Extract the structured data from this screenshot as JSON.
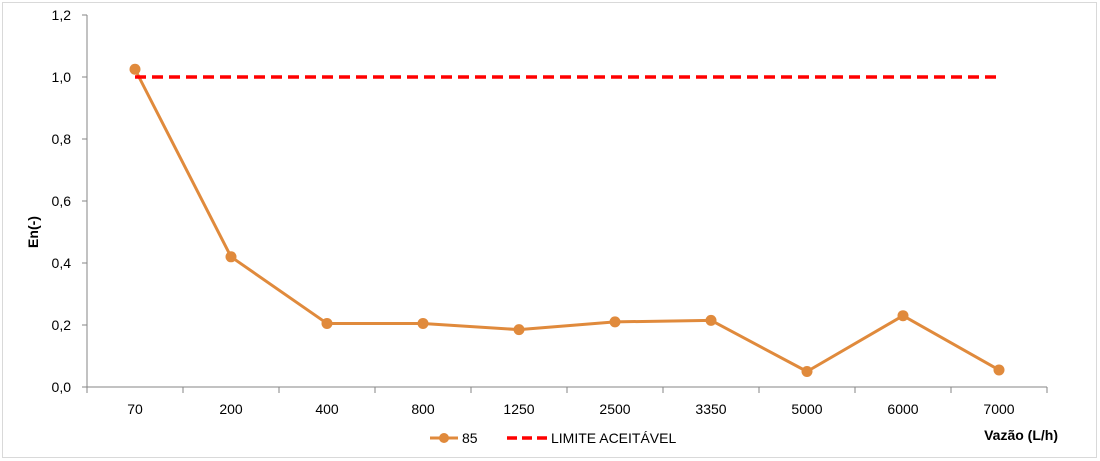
{
  "chart_data": {
    "type": "line",
    "title": "",
    "xlabel": "Vazão  (L/h)",
    "ylabel": "En(-)",
    "categories": [
      "70",
      "200",
      "400",
      "800",
      "1250",
      "2500",
      "3350",
      "5000",
      "6000",
      "7000"
    ],
    "ylim": [
      0,
      1.2
    ],
    "yticks": [
      "0,0",
      "0,2",
      "0,4",
      "0,6",
      "0,8",
      "1,0",
      "1,2"
    ],
    "grid": false,
    "legend_position": "bottom",
    "series": [
      {
        "name": "85",
        "color": "#E08A3C",
        "marker": "circle",
        "values": [
          1.025,
          0.42,
          0.205,
          0.205,
          0.185,
          0.21,
          0.215,
          0.05,
          0.23,
          0.055
        ]
      },
      {
        "name": "LIMITE ACEITÁVEL",
        "color": "#FF0000",
        "line_style": "dashed",
        "values": [
          1.0,
          1.0,
          1.0,
          1.0,
          1.0,
          1.0,
          1.0,
          1.0,
          1.0,
          1.0
        ]
      }
    ]
  }
}
